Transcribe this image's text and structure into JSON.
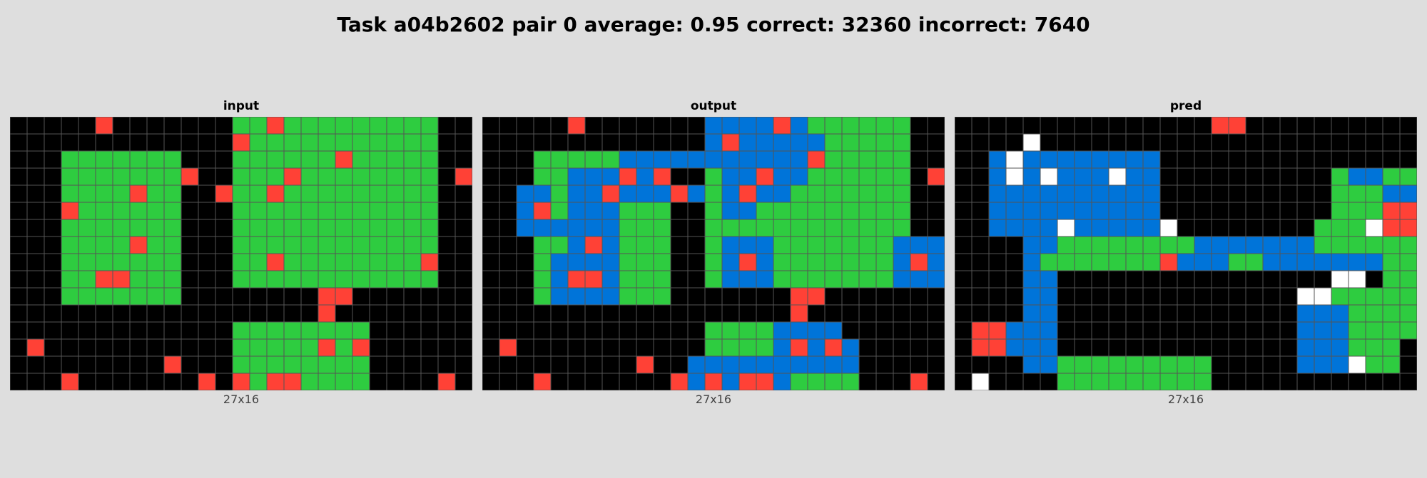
{
  "title": "Task a04b2602 pair 0 average: 0.95 correct: 32360 incorrect: 7640",
  "colors": {
    "0": "#000000",
    "1": "#0074d9",
    "2": "#ff4136",
    "3": "#2ecc40",
    "4": "#ffffff"
  },
  "panels": [
    {
      "label": "input",
      "size_label": "27x16",
      "rows": [
        "000002000000033233333333300",
        "000000000000023333333333300",
        "000333333300033333323333300",
        "000333333320033323333333302",
        "000333323300233233333333300",
        "000233333300033333333333300",
        "000333333300033333333333300",
        "000333323300033333333333300",
        "000333333300033233333333200",
        "000332233300033333333333300",
        "000333333300000000220000000",
        "000000000000000000200000000",
        "000000000000033333333000000",
        "020000000000033333232000000",
        "000000000200033333333000000",
        "000200000002023223333000020"
      ]
    },
    {
      "label": "output",
      "size_label": "27x16",
      "rows": [
        "000002000000011112133333300",
        "000000000000012111113333300",
        "000333331111111111123333300",
        "000331112120031121133333302",
        "001131121112131211333333300",
        "001231113330031133333333300",
        "001111113330033333333333300",
        "000331213330031113333333111",
        "000311113330031213333333121",
        "000312213330031113333333111",
        "000311113330000000220000000",
        "000000000000000000200000000",
        "000000000000033331111000000",
        "020000000000033331212100000",
        "000000000200111111111100000",
        "000200000002121221333300020"
      ]
    },
    {
      "label": "pred",
      "size_label": "27x16",
      "rows": [
        "000000000000000220000000000",
        "000040000000000000000000000",
        "001411111111000000000000000",
        "001414111411000000000031133",
        "001111111111000000000033311",
        "001111111111000000000033322",
        "001111411111400000000333422",
        "000011333333331111111333333",
        "000013333333211133111111133",
        "000011000000000000000044033",
        "000011000000000000004433333",
        "000011000000000000001113333",
        "022111000000000000001113333",
        "022111000000000000001113330",
        "000011333333333000001114330",
        "040000333333333000000000000"
      ]
    }
  ]
}
